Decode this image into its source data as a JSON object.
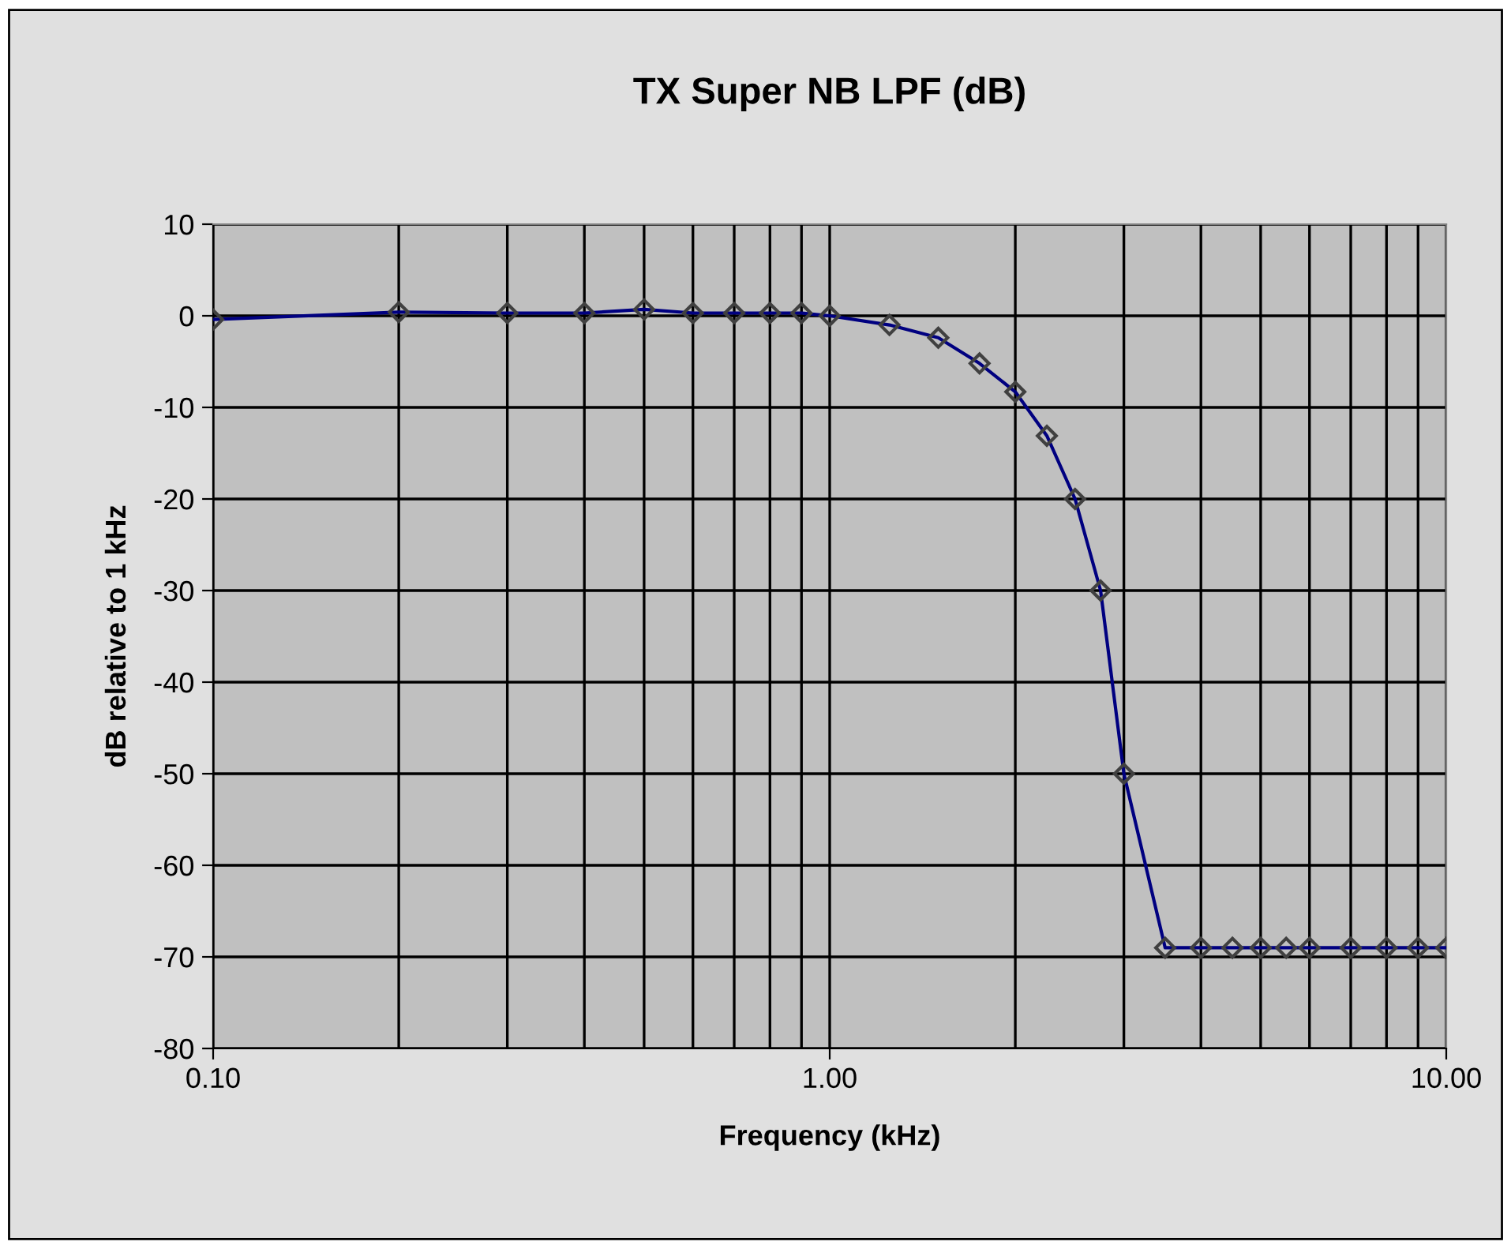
{
  "chart_data": {
    "type": "line",
    "title": "TX Super NB LPF (dB)",
    "xlabel": "Frequency (kHz)",
    "ylabel": "dB relative to 1 kHz",
    "log": "x",
    "grid": true,
    "marker": "diamond",
    "line_style": "solid",
    "x": [
      0.1,
      0.2,
      0.3,
      0.4,
      0.5,
      0.6,
      0.7,
      0.8,
      0.9,
      1.0,
      1.25,
      1.5,
      1.75,
      2.0,
      2.25,
      2.5,
      2.75,
      3.0,
      3.5,
      4.0,
      4.5,
      5.0,
      5.5,
      6.0,
      7.0,
      8.0,
      9.0,
      10.0
    ],
    "series": [
      {
        "color": "#000080",
        "values": [
          -0.4,
          0.4,
          0.3,
          0.3,
          0.7,
          0.3,
          0.3,
          0.3,
          0.3,
          0,
          -1.0,
          -2.4,
          -5.2,
          -8.3,
          -13.1,
          -20,
          -30,
          -50,
          -69,
          -69,
          -69,
          -69,
          -69,
          -69,
          -69,
          -69,
          -69,
          -69
        ]
      }
    ],
    "xlim": [
      0.1,
      10
    ],
    "xticks": [
      {
        "value": 0.1,
        "label": "0.10"
      },
      {
        "value": 1,
        "label": "1.00"
      },
      {
        "value": 10,
        "label": "10.00"
      }
    ],
    "ylim": [
      -80,
      10
    ],
    "yticks": [
      -80,
      -70,
      -60,
      -50,
      -40,
      -30,
      -20,
      -10,
      0,
      10
    ]
  }
}
